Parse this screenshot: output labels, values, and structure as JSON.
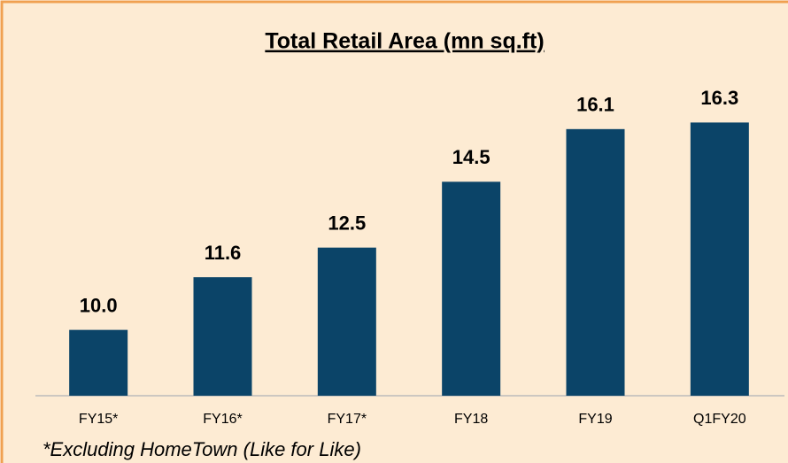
{
  "chart_data": {
    "type": "bar",
    "title": "Total Retail Area (mn sq.ft)",
    "categories": [
      "FY15*",
      "FY16*",
      "FY17*",
      "FY18",
      "FY19",
      "Q1FY20"
    ],
    "values": [
      10.0,
      11.6,
      12.5,
      14.5,
      16.1,
      16.3
    ],
    "value_labels": [
      "10.0",
      "11.6",
      "12.5",
      "14.5",
      "16.1",
      "16.3"
    ],
    "color": "#0b4468",
    "ylim": [
      8,
      19
    ],
    "annotation": "*Excluding HomeTown (Like for Like)"
  }
}
